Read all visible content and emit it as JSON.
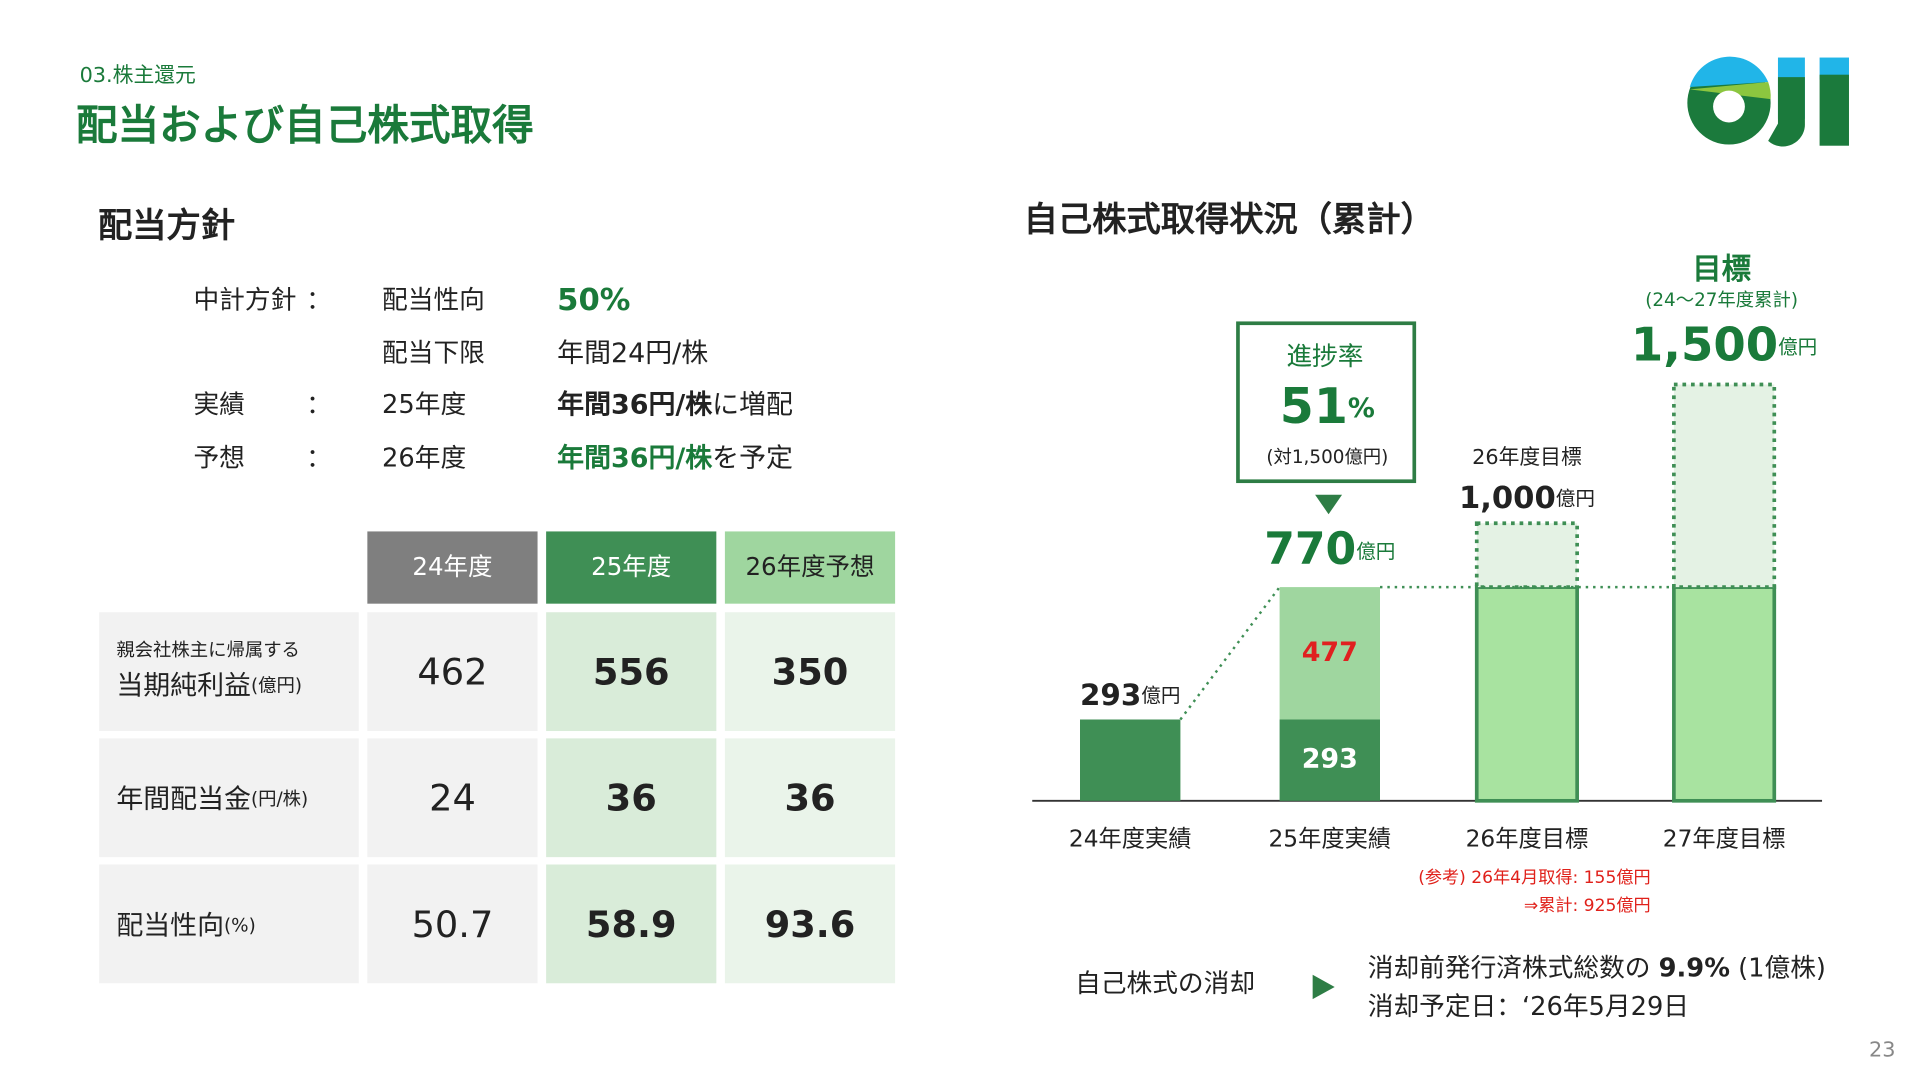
{
  "header": {
    "section": "03.株主還元",
    "title": "配当および自己株式取得"
  },
  "dividend": {
    "heading": "配当方針",
    "policy": [
      {
        "label": "中計方針",
        "colon": "：",
        "item": "配当性向",
        "value": "50%"
      },
      {
        "item": "配当下限",
        "value": "年間24円/株"
      },
      {
        "label": "実績",
        "colon": "：",
        "item": "25年度",
        "value": "年間36円/株",
        "suffix": "に増配"
      },
      {
        "label": "予想",
        "colon": "：",
        "item": "26年度",
        "value": "年間36円/株",
        "suffix": "を予定"
      }
    ]
  },
  "table": {
    "columns": [
      "24年度",
      "25年度",
      "26年度予想"
    ],
    "rows": [
      {
        "note": "親会社株主に帰属する",
        "label": "当期純利益",
        "unit": "(億円)",
        "cells": [
          "462",
          "556",
          "350"
        ]
      },
      {
        "label": "年間配当金",
        "unit": "(円/株)",
        "cells": [
          "24",
          "36",
          "36"
        ]
      },
      {
        "label": "配当性向",
        "unit": "(%)",
        "cells": [
          "50.7",
          "58.9",
          "93.6"
        ]
      }
    ]
  },
  "chart_data": {
    "type": "bar",
    "title": "自己株式取得状況（累計）",
    "categories": [
      "24年度実績",
      "25年度実績",
      "26年度目標",
      "27年度目標"
    ],
    "ylim": [
      0,
      1500
    ],
    "series": [
      {
        "color": "#3f8f55",
        "values": [
          293,
          293,
          null,
          null
        ],
        "labels": true,
        "label_color": "#ffffff"
      },
      {
        "color": "#9fd69f",
        "values": [
          null,
          477,
          null,
          null
        ],
        "labels": true,
        "label_color": "#e02020"
      },
      {
        "color": "#a8e3a0",
        "stroke": "#3f8f55",
        "values": [
          null,
          null,
          770,
          770
        ]
      },
      {
        "color": "#e4f2e4",
        "stroke": "#3f8f55",
        "dotted": true,
        "values": [
          null,
          null,
          230,
          730
        ]
      }
    ],
    "totals": {
      "values": [
        293,
        770,
        1000,
        1500
      ],
      "value_labels": [
        "293",
        "770",
        "1,000",
        "1,500"
      ],
      "unit": "億円"
    },
    "progress": {
      "label": "進捗率",
      "value": 51,
      "unit": "%",
      "note": "(対1,500億円)"
    },
    "target": {
      "label": "目標",
      "note": "(24～27年度累計)"
    },
    "bar_note": "26年度目標",
    "notes": [
      "(参考) 26年4月取得: 155億円",
      "⇒累計: 925億円"
    ]
  },
  "retirement": {
    "label": "自己株式の消却",
    "line1": [
      "消却前発行済株式総数の ",
      "9.9%",
      " (1億株)"
    ],
    "line2": "消却予定日：‘26年5月29日"
  },
  "page_number": "23"
}
